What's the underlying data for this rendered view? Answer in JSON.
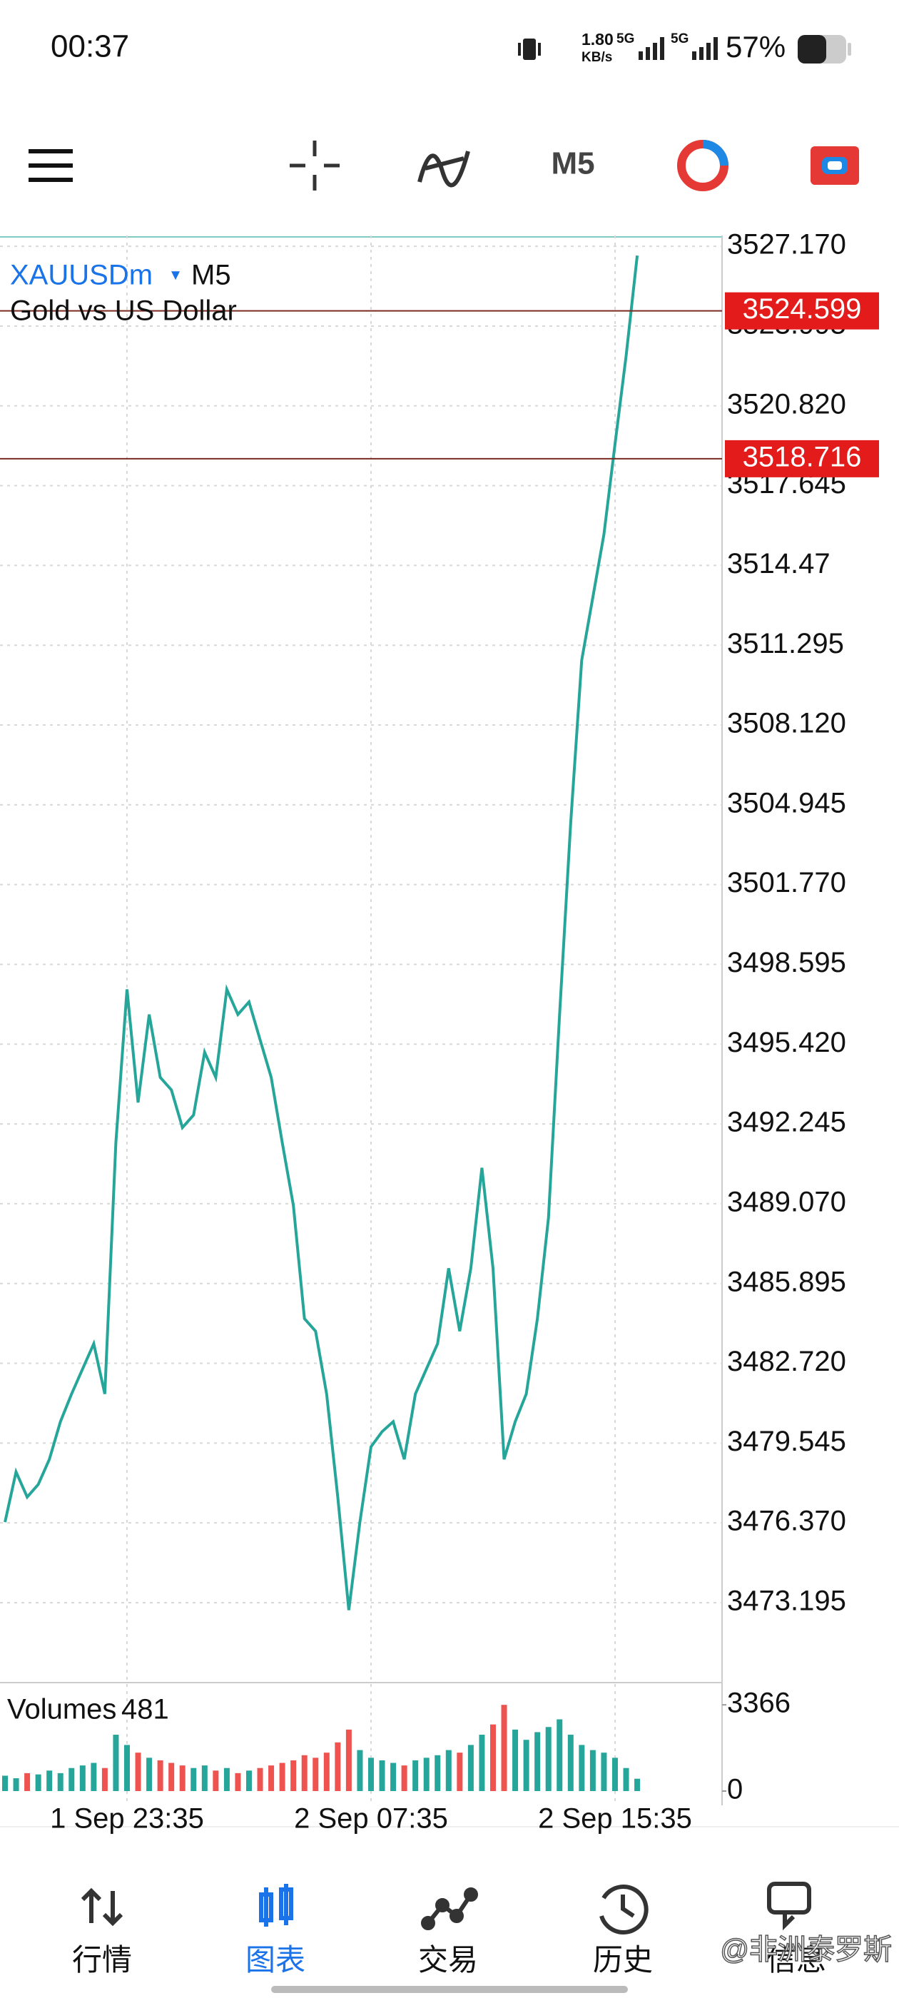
{
  "status_bar": {
    "time": "00:37",
    "net_speed": "1.80",
    "net_unit": "KB/s",
    "network_1": "5G",
    "network_2": "5G",
    "battery": "57%"
  },
  "toolbar": {
    "timeframe": "M5"
  },
  "chart_data": {
    "type": "line",
    "symbol": "XAUUSDm",
    "timeframe": "M5",
    "description": "Gold vs US Dollar",
    "color": "#26a69a",
    "categories": [
      null,
      null,
      null,
      null,
      null,
      null,
      null,
      null,
      null,
      null,
      null,
      "1 Sep 23:35",
      null,
      null,
      null,
      null,
      null,
      null,
      null,
      null,
      null,
      null,
      null,
      null,
      null,
      null,
      null,
      null,
      null,
      null,
      null,
      null,
      null,
      "2 Sep 07:35",
      null,
      null,
      null,
      null,
      null,
      null,
      null,
      null,
      null,
      null,
      null,
      null,
      null,
      null,
      null,
      null,
      null,
      null,
      null,
      null,
      null,
      "2 Sep 15:35",
      null,
      null
    ],
    "values": [
      3476.4,
      3478.4,
      3477.4,
      3477.9,
      3478.9,
      3480.4,
      3481.5,
      3482.5,
      3483.5,
      3481.5,
      3491.5,
      3497.6,
      3493.1,
      3496.6,
      3494.1,
      3493.6,
      3492.1,
      3492.6,
      3495.1,
      3494.1,
      3497.6,
      3496.6,
      3497.1,
      3495.6,
      3494.1,
      3491.5,
      3489.0,
      3484.5,
      3484.0,
      3481.5,
      3477.4,
      3472.9,
      3476.4,
      3479.4,
      3480.0,
      3480.4,
      3478.9,
      3481.5,
      3482.5,
      3483.5,
      3486.5,
      3484.0,
      3486.5,
      3490.5,
      3486.5,
      3478.9,
      3480.4,
      3481.5,
      3484.5,
      3488.5,
      3496.6,
      3504.2,
      3510.7,
      3513.2,
      3515.7,
      3519.3,
      3522.8,
      3526.8
    ],
    "ylim": [
      3470.1,
      3527.6
    ],
    "yticks": [
      {
        "value": 3527.17,
        "label": "3527.170"
      },
      {
        "value": 3523.995,
        "label": "3523.995"
      },
      {
        "value": 3520.82,
        "label": "3520.820"
      },
      3517.645,
      3514.47,
      3511.295,
      {
        "value": 3508.12,
        "label": "3508.120"
      },
      3504.945,
      {
        "value": 3501.77,
        "label": "3501.770"
      },
      3498.595,
      {
        "value": 3495.42,
        "label": "3495.420"
      },
      3492.245,
      {
        "value": 3489.07,
        "label": "3489.070"
      },
      3485.895,
      {
        "value": 3482.72,
        "label": "3482.720"
      },
      3479.545,
      {
        "value": 3476.37,
        "label": "3476.370"
      },
      3473.195
    ],
    "grid": true,
    "price_lines": [
      3524.599,
      3518.716
    ],
    "volumes": {
      "label": "Volumes",
      "values": [
        600,
        500,
        700,
        650,
        800,
        700,
        900,
        1000,
        1100,
        900,
        2200,
        1800,
        1500,
        1300,
        1200,
        1100,
        1000,
        900,
        1000,
        800,
        900,
        700,
        800,
        900,
        1000,
        1100,
        1200,
        1400,
        1300,
        1500,
        1900,
        2400,
        1600,
        1300,
        1200,
        1100,
        1000,
        1200,
        1300,
        1400,
        1600,
        1500,
        1800,
        2200,
        2600,
        3366,
        2400,
        2000,
        2300,
        2500,
        2800,
        2200,
        1800,
        1600,
        1500,
        1300,
        900,
        481
      ],
      "ylim": [
        0,
        3900
      ],
      "yticks": [
        3366,
        0
      ]
    }
  },
  "nav": {
    "items": [
      "行情",
      "图表",
      "交易",
      "历史",
      "信息"
    ]
  },
  "watermark": "@非洲泰罗斯"
}
